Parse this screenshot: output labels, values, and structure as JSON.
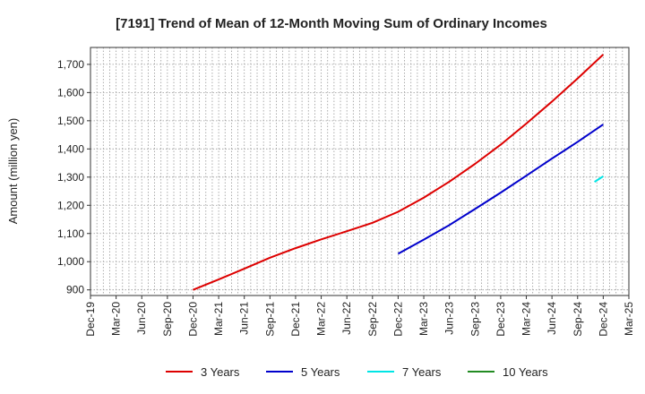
{
  "chart_data": {
    "type": "line",
    "title": "[7191]  Trend of Mean of 12-Month Moving Sum of Ordinary Incomes",
    "xlabel": "",
    "ylabel": "Amount (million yen)",
    "ylim": [
      880,
      1760
    ],
    "yticks": [
      900,
      1000,
      1100,
      1200,
      1300,
      1400,
      1500,
      1600,
      1700
    ],
    "ytick_labels": [
      "900",
      "1,000",
      "1,100",
      "1,200",
      "1,300",
      "1,400",
      "1,500",
      "1,600",
      "1,700"
    ],
    "x_categories": [
      "Dec-19",
      "Mar-20",
      "Jun-20",
      "Sep-20",
      "Dec-20",
      "Mar-21",
      "Jun-21",
      "Sep-21",
      "Dec-21",
      "Mar-22",
      "Jun-22",
      "Sep-22",
      "Dec-22",
      "Mar-23",
      "Jun-23",
      "Sep-23",
      "Dec-23",
      "Mar-24",
      "Jun-24",
      "Sep-24",
      "Dec-24",
      "Mar-25"
    ],
    "grid": true,
    "legend_position": "bottom",
    "series": [
      {
        "name": "3 Years",
        "color": "#dd0000",
        "points": [
          [
            "Dec-20",
            900
          ],
          [
            "Mar-21",
            937
          ],
          [
            "Jun-21",
            975
          ],
          [
            "Sep-21",
            1014
          ],
          [
            "Dec-21",
            1048
          ],
          [
            "Mar-22",
            1079
          ],
          [
            "Jun-22",
            1108
          ],
          [
            "Sep-22",
            1138
          ],
          [
            "Dec-22",
            1177
          ],
          [
            "Mar-23",
            1227
          ],
          [
            "Jun-23",
            1284
          ],
          [
            "Sep-23",
            1347
          ],
          [
            "Dec-23",
            1415
          ],
          [
            "Mar-24",
            1490
          ],
          [
            "Jun-24",
            1568
          ],
          [
            "Sep-24",
            1650
          ],
          [
            "Dec-24",
            1735
          ]
        ]
      },
      {
        "name": "5 Years",
        "color": "#0000cc",
        "points": [
          [
            "Dec-22",
            1028
          ],
          [
            "Mar-23",
            1078
          ],
          [
            "Jun-23",
            1130
          ],
          [
            "Sep-23",
            1187
          ],
          [
            "Dec-23",
            1245
          ],
          [
            "Mar-24",
            1305
          ],
          [
            "Jun-24",
            1366
          ],
          [
            "Sep-24",
            1425
          ],
          [
            "Dec-24",
            1487
          ]
        ]
      },
      {
        "name": "7 Years",
        "color": "#00e5e5",
        "points": [
          [
            19.66,
            1283
          ],
          [
            "Dec-24",
            1303
          ]
        ]
      },
      {
        "name": "10 Years",
        "color": "#228b22",
        "points": []
      }
    ]
  }
}
